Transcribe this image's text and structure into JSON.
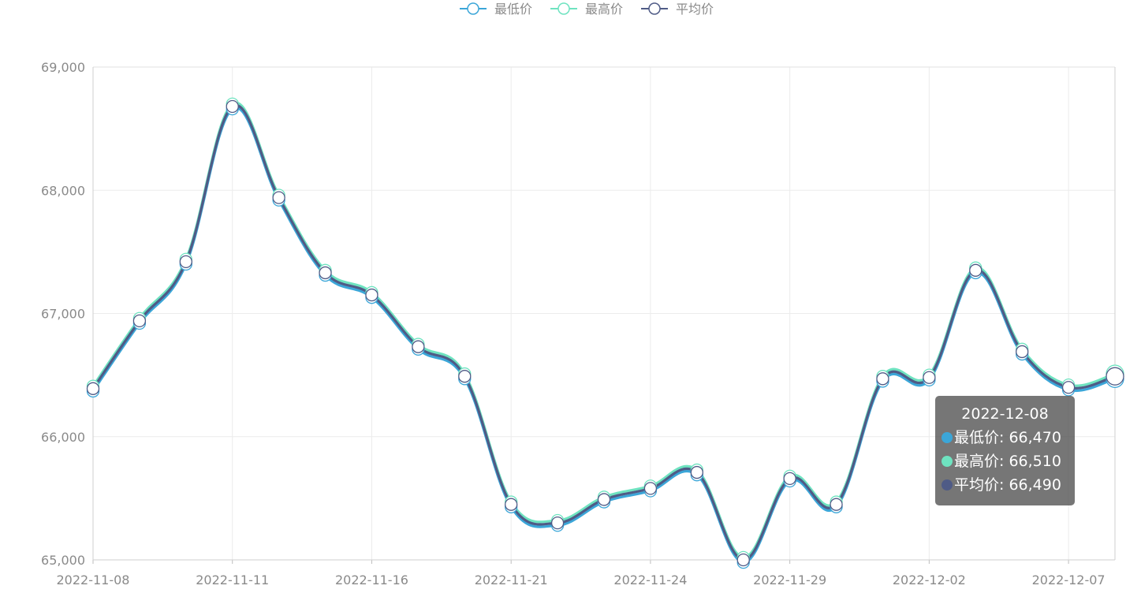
{
  "legend": {
    "items": [
      {
        "label": "最低价",
        "color": "#3ba6d8"
      },
      {
        "label": "最高价",
        "color": "#6ee3c0"
      },
      {
        "label": "平均价",
        "color": "#4f5b86"
      }
    ]
  },
  "tooltip": {
    "title": "2022-12-08",
    "rows": [
      {
        "label": "最低价: 66,470",
        "color": "#3ba6d8"
      },
      {
        "label": "最高价: 66,510",
        "color": "#6ee3c0"
      },
      {
        "label": "平均价: 66,490",
        "color": "#4f5b86"
      }
    ]
  },
  "chart_data": {
    "type": "line",
    "title": "",
    "xlabel": "",
    "ylabel": "",
    "ylim": [
      65000,
      69000
    ],
    "yticks": [
      "65,000",
      "66,000",
      "67,000",
      "68,000",
      "69,000"
    ],
    "xtick_labels": [
      "2022-11-08",
      "2022-11-11",
      "2022-11-16",
      "2022-11-21",
      "2022-11-24",
      "2022-11-29",
      "2022-12-02",
      "2022-12-07"
    ],
    "x": [
      "2022-11-08",
      "2022-11-09",
      "2022-11-10",
      "2022-11-11",
      "2022-11-14",
      "2022-11-15",
      "2022-11-16",
      "2022-11-17",
      "2022-11-18",
      "2022-11-21",
      "2022-11-22",
      "2022-11-23",
      "2022-11-24",
      "2022-11-25",
      "2022-11-28",
      "2022-11-29",
      "2022-11-30",
      "2022-12-01",
      "2022-12-02",
      "2022-12-05",
      "2022-12-06",
      "2022-12-07",
      "2022-12-08"
    ],
    "grid": true,
    "legend_position": "top-center",
    "series": [
      {
        "name": "最低价",
        "color": "#3ba6d8",
        "values": [
          66370,
          66920,
          67400,
          68660,
          67920,
          67310,
          67130,
          66710,
          66470,
          65430,
          65280,
          65470,
          65560,
          65690,
          64980,
          65640,
          65430,
          66450,
          66460,
          67330,
          66670,
          66380,
          66470
        ]
      },
      {
        "name": "最高价",
        "color": "#6ee3c0",
        "values": [
          66410,
          66960,
          67440,
          68700,
          67960,
          67350,
          67170,
          66750,
          66510,
          65470,
          65320,
          65510,
          65600,
          65730,
          65020,
          65680,
          65470,
          66490,
          66500,
          67370,
          66710,
          66420,
          66510
        ]
      },
      {
        "name": "平均价",
        "color": "#4f5b86",
        "values": [
          66390,
          66940,
          67420,
          68680,
          67940,
          67330,
          67150,
          66730,
          66490,
          65450,
          65300,
          65490,
          65580,
          65710,
          65000,
          65660,
          65450,
          66470,
          66480,
          67350,
          66690,
          66400,
          66490
        ]
      }
    ]
  }
}
